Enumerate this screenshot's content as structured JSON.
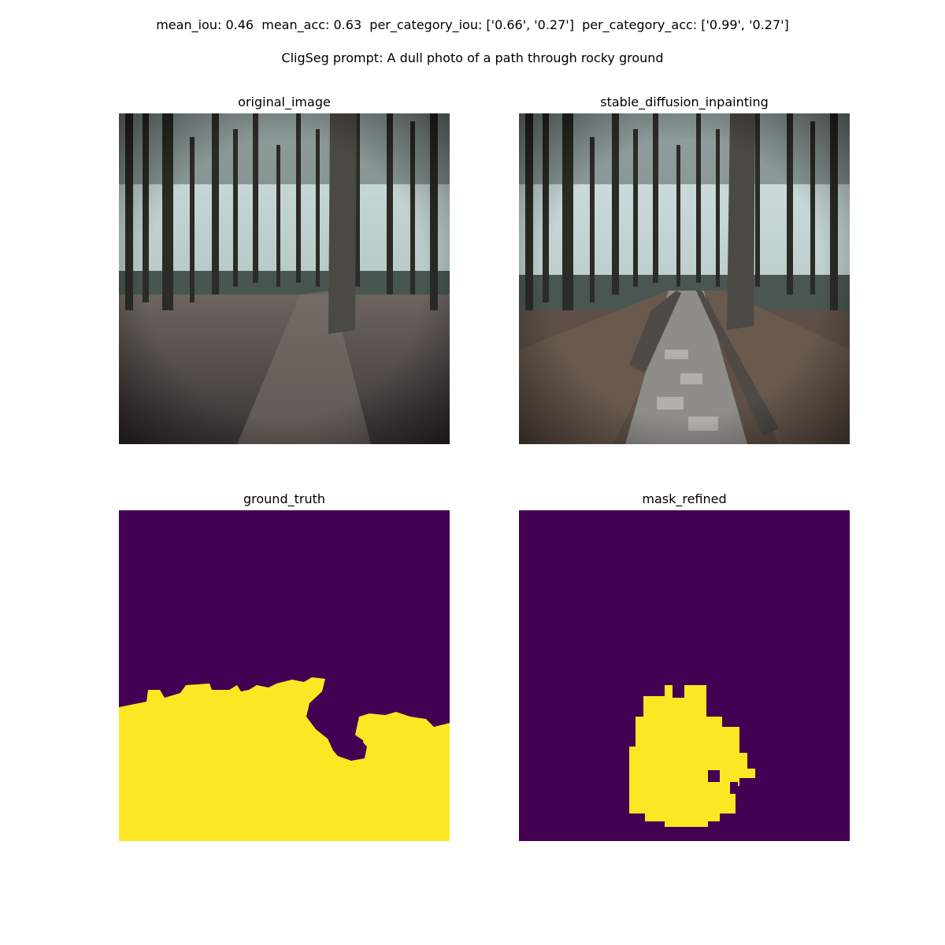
{
  "header": {
    "metrics": "mean_iou: 0.46  mean_acc: 0.63  per_category_iou: ['0.66', '0.27']  per_category_acc: ['0.99', '0.27']",
    "prompt": "CligSeg prompt: A dull photo of a path through rocky ground"
  },
  "panels": [
    {
      "title": "original_image"
    },
    {
      "title": "stable_diffusion_inpainting"
    },
    {
      "title": "ground_truth"
    },
    {
      "title": "mask_refined"
    }
  ],
  "colors": {
    "mask_background": "#440154",
    "mask_foreground": "#fde725"
  }
}
